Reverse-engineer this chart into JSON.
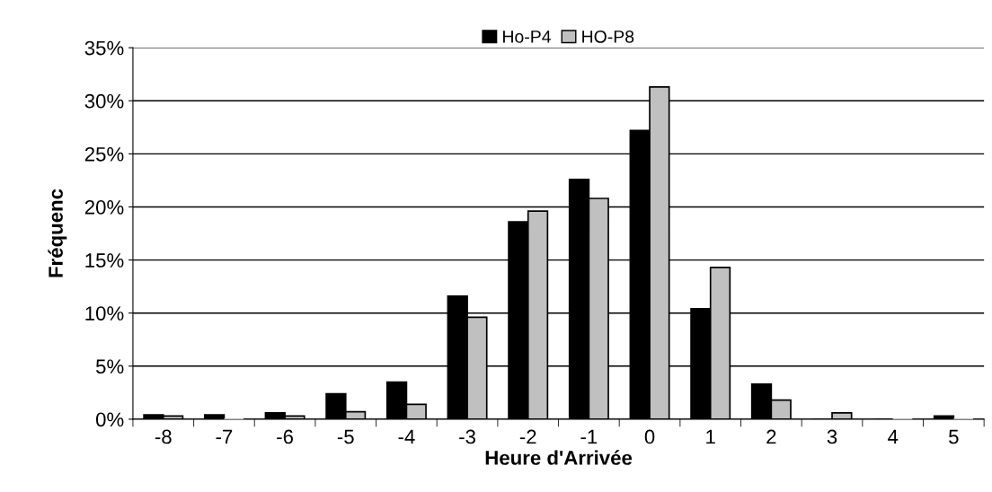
{
  "chart_data": {
    "type": "bar",
    "xlabel": "Heure d'Arrivée",
    "ylabel": "Fréquenc",
    "categories": [
      "-8",
      "-7",
      "-6",
      "-5",
      "-4",
      "-3",
      "-2",
      "-1",
      "0",
      "1",
      "2",
      "3",
      "4",
      "5"
    ],
    "series": [
      {
        "name": "Ho-P4",
        "color": "#000000",
        "values": [
          0.4,
          0.4,
          0.6,
          2.4,
          3.5,
          11.6,
          18.6,
          22.6,
          27.2,
          10.4,
          3.3,
          0,
          0,
          0.3
        ]
      },
      {
        "name": "HO-P8",
        "color": "#c0c0c0",
        "values": [
          0.3,
          0,
          0.3,
          0.7,
          1.4,
          9.6,
          19.6,
          20.8,
          31.3,
          14.3,
          1.8,
          0.6,
          0,
          0
        ]
      }
    ],
    "ylim": [
      0,
      35
    ],
    "yticks": [
      {
        "value": 0,
        "label": "0%"
      },
      {
        "value": 5,
        "label": "5%"
      },
      {
        "value": 10,
        "label": "10%"
      },
      {
        "value": 15,
        "label": "15%"
      },
      {
        "value": 20,
        "label": "20%"
      },
      {
        "value": 25,
        "label": "25%"
      },
      {
        "value": 30,
        "label": "30%"
      },
      {
        "value": 35,
        "label": "35%"
      }
    ],
    "grid": "y",
    "legend": "top"
  }
}
